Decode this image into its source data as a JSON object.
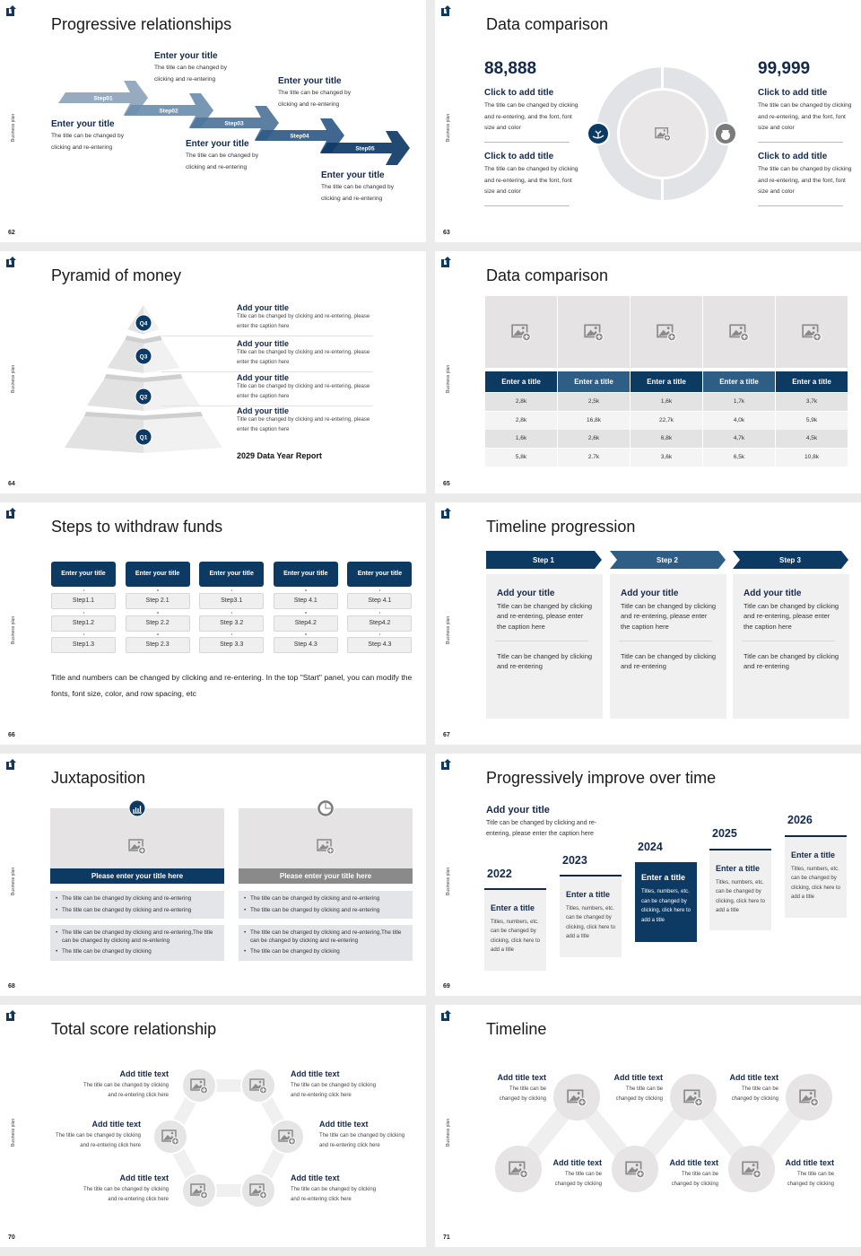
{
  "side_label": "Business plan",
  "colors": {
    "navy": "#0d3a63",
    "mid_blue": "#2e5d86",
    "gray_panel": "#f0f0f0",
    "gray_image": "#e5e3e3",
    "gray_header": "#8a8a8a"
  },
  "slides": [
    {
      "page": "62",
      "title": "Progressive relationships",
      "steps": [
        "Step01",
        "Step02",
        "Step03",
        "Step04",
        "Step05"
      ],
      "items": [
        {
          "title": "Enter your title",
          "desc": "The title can be changed by clicking and re-entering"
        },
        {
          "title": "Enter your title",
          "desc": "The title can be changed by clicking and re-entering"
        },
        {
          "title": "Enter your title",
          "desc": "The title can be changed by clicking and re-entering"
        },
        {
          "title": "Enter your title",
          "desc": "The title can be changed by clicking and re-entering"
        },
        {
          "title": "Enter your title",
          "desc": "The title can be changed by clicking and re-entering"
        }
      ]
    },
    {
      "page": "63",
      "title": "Data comparison",
      "left": {
        "number": "88,888",
        "blocks": [
          {
            "title": "Click to add title",
            "desc": "The title can be changed by clicking and re-entering, and the font, font size and color"
          },
          {
            "title": "Click to add title",
            "desc": "The title can be changed by clicking and re-entering, and the font, font size and color"
          }
        ],
        "icon": "money-hand-icon"
      },
      "right": {
        "number": "99,999",
        "blocks": [
          {
            "title": "Click to add title",
            "desc": "The title can be changed by clicking and re-entering, and the font, font size and color"
          },
          {
            "title": "Click to add title",
            "desc": "The title can be changed by clicking and re-entering, and the font, font size and color"
          }
        ],
        "icon": "money-bag-icon"
      }
    },
    {
      "page": "64",
      "title": "Pyramid of money",
      "levels": [
        "Q4",
        "Q3",
        "Q2",
        "Q1"
      ],
      "items": [
        {
          "title": "Add your title",
          "desc": "Title can be changed by clicking and re-entering, please enter the caption here"
        },
        {
          "title": "Add your title",
          "desc": "Title can be changed by clicking and re-entering, please enter the caption here"
        },
        {
          "title": "Add your title",
          "desc": "Title can be changed by clicking and re-entering, please enter the caption here"
        },
        {
          "title": "Add your title",
          "desc": "Title can be changed by clicking and re-entering, please enter the caption here"
        }
      ],
      "report": "2029 Data Year Report"
    },
    {
      "page": "65",
      "title": "Data comparison",
      "headers": [
        "Enter a title",
        "Enter a title",
        "Enter a title",
        "Enter a title",
        "Enter a title"
      ],
      "rows": [
        [
          "2,8k",
          "2,5k",
          "1,6k",
          "1,7k",
          "3,7k"
        ],
        [
          "2,8k",
          "16,8k",
          "22,7k",
          "4,0k",
          "5,9k"
        ],
        [
          "1,6k",
          "2,6k",
          "6,8k",
          "4,7k",
          "4,5k"
        ],
        [
          "5,8k",
          "2.7k",
          "3,6k",
          "6,5k",
          "10,8k"
        ]
      ]
    },
    {
      "page": "66",
      "title": "Steps to withdraw funds",
      "headers": [
        "Enter your title",
        "Enter your title",
        "Enter your title",
        "Enter your title",
        "Enter your title"
      ],
      "columns": [
        [
          "Step1.1",
          "Step1.2",
          "Step1.3"
        ],
        [
          "Step 2.1",
          "Step 2.2",
          "Step 2.3"
        ],
        [
          "Step3.1",
          "Step 3.2",
          "Step 3.3"
        ],
        [
          "Step 4.1",
          "Step4.2",
          "Step 4.3"
        ],
        [
          "Step 4.1",
          "Step4.2",
          "Step 4.3"
        ]
      ],
      "note": "Title and numbers can be changed by clicking and re-entering. In the top \"Start\" panel, you can modify the fonts, font size, color, and row spacing, etc"
    },
    {
      "page": "67",
      "title": "Timeline progression",
      "steps": [
        "Step 1",
        "Step 2",
        "Step 3"
      ],
      "panels": [
        {
          "title": "Add your title",
          "desc": "Title can be changed by clicking and re-entering, please enter the caption here",
          "note": "Title can be changed by clicking and re-entering"
        },
        {
          "title": "Add your title",
          "desc": "Title can be changed by clicking and re-entering, please enter the caption here",
          "note": "Title can be changed by clicking and re-entering"
        },
        {
          "title": "Add your title",
          "desc": "Title can be changed by clicking and re-entering, please enter the caption here",
          "note": "Title can be changed by clicking and re-entering"
        }
      ]
    },
    {
      "page": "68",
      "title": "Juxtaposition",
      "panels": [
        {
          "icon": "bar-chart-icon",
          "header": "Please enter your title here",
          "bullets1": [
            "The title can be changed by clicking and re-entering",
            "The title can be changed by clicking and re-entering"
          ],
          "bullets2": [
            "The title can be changed by clicking and re-entering,The title can be changed by clicking and re-entering",
            "The title can be changed by clicking"
          ]
        },
        {
          "icon": "pie-chart-icon",
          "header": "Please enter your title here",
          "bullets1": [
            "The title can be changed by clicking and re-entering",
            "The title can be changed by clicking and re-entering"
          ],
          "bullets2": [
            "The title can be changed by clicking and re-entering,The title can be changed by clicking and re-entering",
            "The title can be changed by clicking"
          ]
        }
      ]
    },
    {
      "page": "69",
      "title": "Progressively improve over time",
      "intro": {
        "title": "Add your title",
        "desc": "Title can be changed by clicking and re-entering, please enter the caption here"
      },
      "years": [
        {
          "year": "2022",
          "title": "Enter a title",
          "desc": "Titles, numbers, etc. can be changed by clicking, click here to add a title"
        },
        {
          "year": "2023",
          "title": "Enter a title",
          "desc": "Titles, numbers, etc. can be changed by clicking, click here to add a title"
        },
        {
          "year": "2024",
          "title": "Enter a title",
          "desc": "Titles, numbers, etc. can be changed by clicking, click here to add a title"
        },
        {
          "year": "2025",
          "title": "Enter a title",
          "desc": "Titles, numbers, etc. can be changed by clicking, click here to add a title"
        },
        {
          "year": "2026",
          "title": "Enter a title",
          "desc": "Titles, numbers, etc. can be changed by clicking, click here to add a title"
        }
      ]
    },
    {
      "page": "70",
      "title": "Total score relationship",
      "items": [
        {
          "title": "Add title text",
          "desc": "The title can be changed by clicking and re-entering click here"
        },
        {
          "title": "Add title text",
          "desc": "The title can be changed by clicking and re-entering click here"
        },
        {
          "title": "Add title text",
          "desc": "The title can be changed by clicking and re-entering click here"
        },
        {
          "title": "Add title text",
          "desc": "The title can be changed by clicking and re-entering click here"
        },
        {
          "title": "Add title text",
          "desc": "The title can be changed by clicking and re-entering click here"
        },
        {
          "title": "Add title text",
          "desc": "The title can be changed by clicking and re-entering click here"
        }
      ]
    },
    {
      "page": "71",
      "title": "Timeline",
      "items": [
        {
          "title": "Add title text",
          "desc": "The title can be changed by clicking"
        },
        {
          "title": "Add title text",
          "desc": "The title can be changed by clicking"
        },
        {
          "title": "Add title text",
          "desc": "The title can be changed by clicking"
        },
        {
          "title": "Add title text",
          "desc": "The title can be changed by clicking"
        },
        {
          "title": "Add title text",
          "desc": "The title can be changed by clicking"
        },
        {
          "title": "Add title text",
          "desc": "The title can be changed by clicking"
        }
      ]
    }
  ]
}
